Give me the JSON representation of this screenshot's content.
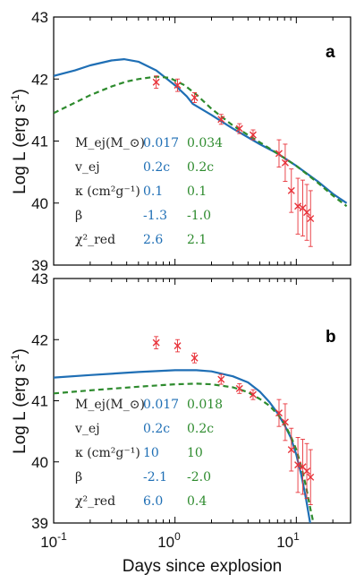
{
  "figure": {
    "xlabel": "Days since explosion",
    "ylabel": "Log L (erg s",
    "ylabel_sup": "-1",
    "ylabel_end": ")",
    "x_tick_labels": [
      "10",
      "10",
      "10"
    ],
    "x_tick_exponents": [
      "-1",
      "0",
      "1"
    ],
    "colors": {
      "blue": "#1f6fb5",
      "green": "#2e8b2e",
      "data": "#e8333a",
      "axis": "#000000"
    }
  },
  "chart_data": [
    {
      "type": "line",
      "panel": "a",
      "xscale": "log",
      "xlim": [
        0.1,
        28
      ],
      "ylim": [
        39,
        43
      ],
      "yticks": [
        39,
        40,
        41,
        42,
        43
      ],
      "ytick_labels": [
        "39",
        "40",
        "41",
        "42",
        "43"
      ],
      "observations": {
        "x": [
          0.7,
          1.05,
          1.45,
          2.4,
          3.4,
          4.4,
          7.2,
          8.1,
          9.1,
          10.3,
          11.3,
          12.2,
          13.1
        ],
        "y": [
          41.95,
          41.9,
          41.7,
          41.35,
          41.2,
          41.1,
          40.8,
          40.65,
          40.2,
          39.95,
          39.92,
          39.85,
          39.75
        ],
        "yerr": [
          0.1,
          0.1,
          0.08,
          0.08,
          0.08,
          0.08,
          0.22,
          0.3,
          0.35,
          0.45,
          0.45,
          0.45,
          0.45
        ]
      },
      "series": [
        {
          "style": "solid",
          "color": "blue",
          "x": [
            0.1,
            0.15,
            0.2,
            0.3,
            0.38,
            0.5,
            0.7,
            1.0,
            1.25,
            1.4,
            2.0,
            3.0,
            5.0,
            7.0,
            10.0,
            15.0,
            20.0,
            26.0
          ],
          "y": [
            42.05,
            42.14,
            42.22,
            42.3,
            42.32,
            42.28,
            42.14,
            41.9,
            41.72,
            41.6,
            41.42,
            41.2,
            40.95,
            40.8,
            40.6,
            40.35,
            40.15,
            40.0
          ]
        },
        {
          "style": "dashed",
          "color": "green",
          "x": [
            0.1,
            0.15,
            0.2,
            0.3,
            0.4,
            0.5,
            0.7,
            0.9,
            1.2,
            1.5,
            2.0,
            3.0,
            5.0,
            7.0,
            10.0,
            15.0,
            20.0,
            26.0
          ],
          "y": [
            41.45,
            41.62,
            41.74,
            41.88,
            41.96,
            42.0,
            42.04,
            42.02,
            41.9,
            41.75,
            41.52,
            41.25,
            40.98,
            40.8,
            40.6,
            40.33,
            40.12,
            39.95
          ]
        }
      ],
      "parameters": {
        "labels": [
          "M_ej(M_⊙)",
          "v_ej",
          "κ (cm²g⁻¹)",
          "β",
          "χ²_red"
        ],
        "blue": [
          "0.017",
          "0.2c",
          "0.1",
          "-1.3",
          "2.6"
        ],
        "green": [
          "0.034",
          "0.2c",
          "0.1",
          "-1.0",
          "2.1"
        ]
      }
    },
    {
      "type": "line",
      "panel": "b",
      "xscale": "log",
      "xlim": [
        0.1,
        28
      ],
      "ylim": [
        39,
        43
      ],
      "yticks": [
        39,
        40,
        41,
        42,
        43
      ],
      "ytick_labels": [
        "39",
        "40",
        "41",
        "42",
        "43"
      ],
      "observations": {
        "x": [
          0.7,
          1.05,
          1.45,
          2.4,
          3.4,
          4.4,
          7.2,
          8.1,
          9.1,
          10.3,
          11.3,
          12.2,
          13.1
        ],
        "y": [
          41.95,
          41.9,
          41.7,
          41.35,
          41.2,
          41.1,
          40.8,
          40.65,
          40.2,
          39.95,
          39.92,
          39.85,
          39.75
        ],
        "yerr": [
          0.1,
          0.1,
          0.08,
          0.08,
          0.08,
          0.08,
          0.22,
          0.3,
          0.35,
          0.45,
          0.45,
          0.45,
          0.45
        ]
      },
      "series": [
        {
          "style": "solid",
          "color": "blue",
          "x": [
            0.1,
            0.2,
            0.5,
            1.0,
            1.5,
            2.0,
            3.0,
            4.0,
            5.0,
            6.0,
            7.0,
            8.0,
            9.0,
            10.0,
            11.0,
            12.0,
            13.0
          ],
          "y": [
            41.38,
            41.42,
            41.47,
            41.5,
            41.5,
            41.48,
            41.4,
            41.3,
            41.15,
            40.98,
            40.8,
            40.6,
            40.4,
            40.12,
            39.78,
            39.4,
            39.0
          ]
        },
        {
          "style": "dashed",
          "color": "green",
          "x": [
            0.1,
            0.2,
            0.5,
            1.0,
            1.5,
            2.0,
            3.0,
            4.0,
            5.0,
            6.0,
            7.0,
            8.0,
            9.0,
            10.0,
            11.0,
            12.0,
            13.0,
            14.0
          ],
          "y": [
            41.12,
            41.17,
            41.23,
            41.27,
            41.28,
            41.27,
            41.22,
            41.14,
            41.03,
            40.92,
            40.78,
            40.62,
            40.42,
            40.2,
            39.92,
            39.6,
            39.25,
            38.95
          ]
        }
      ],
      "parameters": {
        "labels": [
          "M_ej(M_⊙)",
          "v_ej",
          "κ (cm²g⁻¹)",
          "β",
          "χ²_red"
        ],
        "blue": [
          "0.017",
          "0.2c",
          "10",
          "-2.1",
          "6.0"
        ],
        "green": [
          "0.018",
          "0.2c",
          "10",
          "-2.0",
          "0.4"
        ]
      }
    }
  ]
}
